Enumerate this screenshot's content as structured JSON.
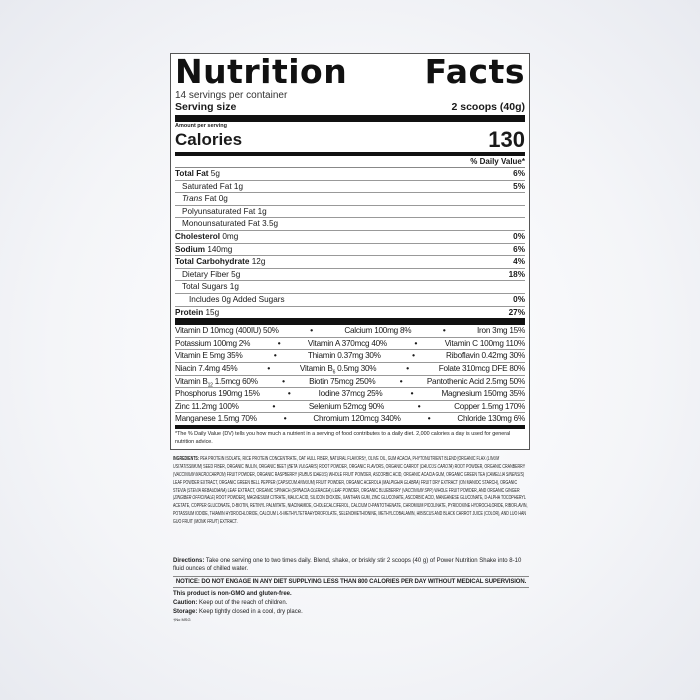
{
  "header": {
    "title_left": "Nutrition",
    "title_right": "Facts"
  },
  "servings_per_container": "14 servings per container",
  "serving_size": {
    "label": "Serving size",
    "value": "2 scoops (40g)"
  },
  "amount_per_serving": "Amount per serving",
  "calories": {
    "label": "Calories",
    "value": "130"
  },
  "dv_header": "% Daily Value*",
  "nutrients": [
    {
      "name": "Total Fat",
      "amount": "5g",
      "dv": "6%"
    },
    {
      "name": "Saturated Fat",
      "amount": "1g",
      "dv": "5%"
    },
    {
      "name": "Trans",
      "amount": "Fat 0g",
      "dv": ""
    },
    {
      "name": "Polyunsaturated Fat",
      "amount": "1g",
      "dv": ""
    },
    {
      "name": "Monounsaturated Fat",
      "amount": "3.5g",
      "dv": ""
    },
    {
      "name": "Cholesterol",
      "amount": "0mg",
      "dv": "0%"
    },
    {
      "name": "Sodium",
      "amount": "140mg",
      "dv": "6%"
    },
    {
      "name": "Total Carbohydrate",
      "amount": "12g",
      "dv": "4%"
    },
    {
      "name": "Dietary Fiber",
      "amount": "5g",
      "dv": "18%"
    },
    {
      "name": "Total Sugars",
      "amount": "1g",
      "dv": ""
    },
    {
      "name": "Includes 0g Added Sugars",
      "amount": "",
      "dv": "0%"
    },
    {
      "name": "Protein",
      "amount": "15g",
      "dv": "27%"
    }
  ],
  "vitamins": [
    [
      "Vitamin D 10mcg (400IU) 50%",
      "Calcium 100mg 8%",
      "Iron 3mg 15%"
    ],
    [
      "Potassium 100mg 2%",
      "Vitamin A 370mcg 40%",
      "Vitamin C 100mg 110%"
    ],
    [
      "Vitamin E 5mg 35%",
      "Thiamin 0.37mg 30%",
      "Riboflavin 0.42mg 30%"
    ],
    [
      "Niacin 7.4mg 45%",
      "Vitamin B6 0.5mg 30%",
      "Folate 310mcg DFE 80%"
    ],
    [
      "Vitamin B12 1.5mcg 60%",
      "Biotin 75mcg 250%",
      "Pantothenic Acid 2.5mg 50%"
    ],
    [
      "Phosphorus 190mg 15%",
      "Iodine 37mcg 25%",
      "Magnesium 150mg 35%"
    ],
    [
      "Zinc 11.2mg 100%",
      "Selenium 52mcg 90%",
      "Copper 1.5mg 170%"
    ],
    [
      "Manganese 1.5mg 70%",
      "Chromium 120mcg 340%",
      "Chloride 130mg 6%"
    ]
  ],
  "separator": "•",
  "footnote": "*The % Daily Value (DV) tells you how much a nutrient in a serving of food contributes to a daily diet. 2,000 calories a day is used for general nutrition advice.",
  "ingredients": {
    "label": "INGREDIENTS:",
    "text": "PEA PROTEIN ISOLATE, RICE PROTEIN CONCENTRATE, OAT HULL FIBER, NATURAL FLAVORS†, OLIVE OIL, GUM ACACIA, PHYTONUTRIENT BLEND [ORGANIC FLAX (LINUM USITATISSIMUM) SEED FIBER, ORGANIC INULIN, ORGANIC BEET (BETA VULGARIS) ROOT POWDER, ORGANIC FLAVORS, ORGANIC CARROT (DAUCUS CAROTA) ROOT POWDER, ORGANIC CRANBERRY (VACCINIUM MACROCARPON) FRUIT POWDER, ORGANIC RASPBERRY (RUBUS IDAEUS) WHOLE FRUIT POWDER, ASCORBIC ACID, ORGANIC ACACIA GUM, ORGANIC GREEN TEA (CAMELLIA SINENSIS) LEAF POWDER EXTRACT, ORGANIC GREEN BELL PEPPER (CAPSICUM ANNUUM) FRUIT POWDER, ORGANIC ACEROLA (MALPIGHIA GLABRA) FRUIT DRY EXTRACT (ON MANIOC STARCH), ORGANIC STEVIA (STEVIA REBAUDIANA) LEAF EXTRACT, ORGANIC SPINACH (SPINACIA OLERACEA) LEAF POWDER, ORGANIC BLUEBERRY (VACCINIUM SPP.) WHOLE FRUIT POWDER, AND ORGANIC GINGER (ZINGIBER OFFICINALE) ROOT POWDER], MAGNESIUM CITRATE, MALIC ACID, SILICON DIOXIDE, XANTHAN GUM, ZINC GLUCONATE, ASCORBIC ACID, MANGANESE GLUCONATE, D-ALPHA TOCOPHERYL ACETATE, COPPER GLUCONATE, D-BIOTIN, RETINYL PALMITATE, NIACINAMIDE, CHOLECALCIFEROL, CALCIUM D-PANTOTHENATE, CHROMIUM PICOLINATE, PYRIDOXINE HYDROCHLORIDE, RIBOFLAVIN, POTASSIUM IODIDE, THIAMIN HYDROCHLORIDE, CALCIUM L-5-METHYLTETRAHYDROFOLATE, SELENOMETHIONINE, METHYLCOBALAMIN, HIBISCUS AND BLACK CARROT JUICE (COLOR), AND LUO HAN GUO FRUIT (MONK FRUIT) EXTRACT."
  },
  "directions": {
    "label": "Directions:",
    "text": "Take one serving one to two times daily. Blend, shake, or briskly stir 2 scoops (40 g) of Power Nutrition Shake into 8-10 fluid ounces of chilled water."
  },
  "notice": "NOTICE: DO NOT ENGAGE IN ANY DIET SUPPLYING LESS THAN 800 CALORIES PER DAY WITHOUT MEDICAL SUPERVISION.",
  "non_gmo": "This product is non-GMO and gluten-free.",
  "caution": {
    "label": "Caution:",
    "text": "Keep out of the reach of children."
  },
  "storage": {
    "label": "Storage:",
    "text": "Keep tightly closed in a cool, dry place."
  },
  "msg_note": "†No MSG"
}
